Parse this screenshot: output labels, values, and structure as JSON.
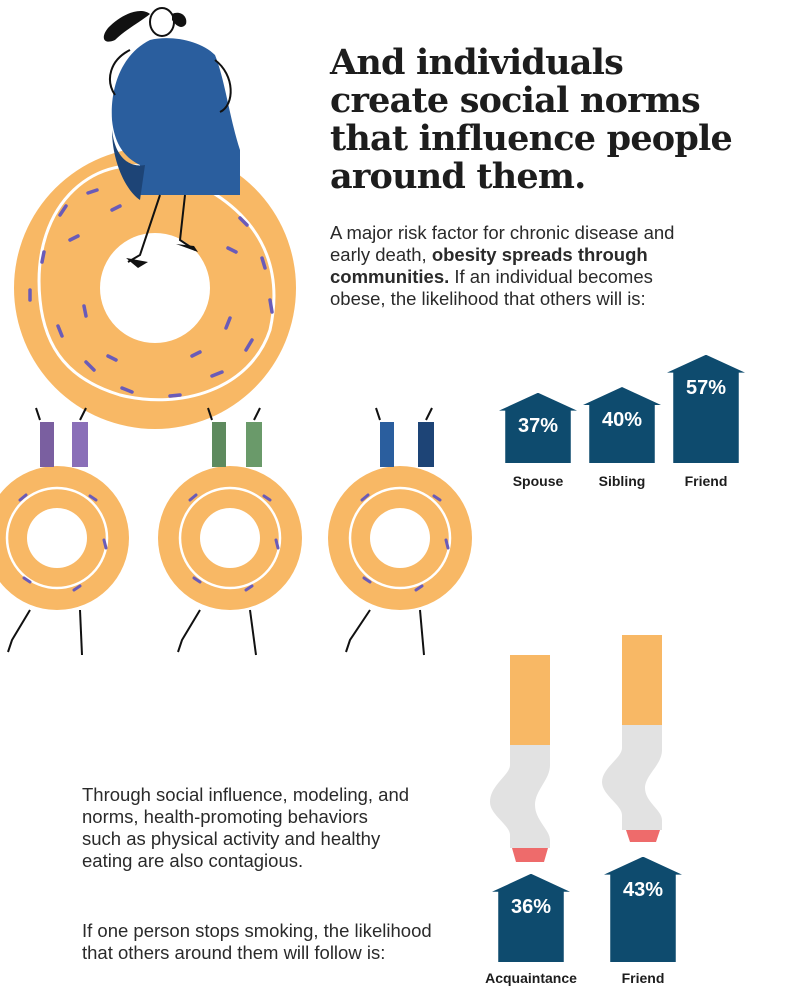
{
  "heading": {
    "lines": [
      "And individuals",
      "create social norms",
      "that influence people",
      "around them."
    ]
  },
  "intro": {
    "line1": "A major risk factor for chronic disease and",
    "line2_plain": "early death, ",
    "line2_bold": "obesity spreads through",
    "line3_bold": "communities.",
    "line3_plain": " If an individual becomes",
    "line4": "obese, the likelihood that others will is:"
  },
  "obesity_chart": {
    "bars": [
      {
        "label": "Spouse",
        "value_text": "37%",
        "value": 37
      },
      {
        "label": "Sibling",
        "value_text": "40%",
        "value": 40
      },
      {
        "label": "Friend",
        "value_text": "57%",
        "value": 57
      }
    ]
  },
  "contagion_text": {
    "lines": [
      "Through social influence, modeling, and",
      "norms, health-promoting behaviors",
      "such as physical activity and healthy",
      "eating are also contagious."
    ]
  },
  "smoking_text": {
    "lines": [
      "If one person stops smoking, the likelihood",
      "that others around them will follow is:"
    ]
  },
  "smoking_chart": {
    "bars": [
      {
        "label": "Acquaintance",
        "value_text": "36%",
        "value": 36
      },
      {
        "label": "Friend",
        "value_text": "43%",
        "value": 43
      }
    ]
  },
  "colors": {
    "house": "#0e4b6e",
    "donut": "#f8b865",
    "sprinkle": "#6a5bb8",
    "filter_gray": "#e2e2e2",
    "ember": "#ee6b6b",
    "dress": "#2a5e9e"
  }
}
